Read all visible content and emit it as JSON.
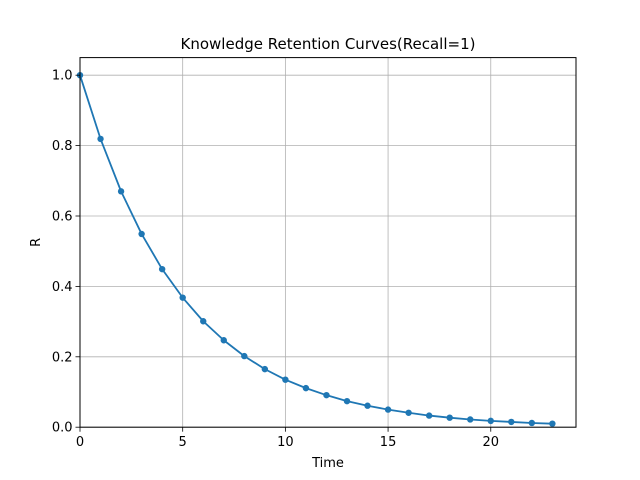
{
  "chart_data": {
    "type": "line",
    "title": "Knowledge Retention Curves(Recall=1)",
    "xlabel": "Time",
    "ylabel": "R",
    "xlim": [
      0,
      24.15
    ],
    "ylim": [
      0,
      1.05
    ],
    "grid": true,
    "x_ticks": [
      0,
      5,
      10,
      15,
      20
    ],
    "y_ticks": [
      0.0,
      0.2,
      0.4,
      0.6,
      0.8,
      1.0
    ],
    "x_tick_labels": [
      "0",
      "5",
      "10",
      "15",
      "20"
    ],
    "y_tick_labels": [
      "0.0",
      "0.2",
      "0.4",
      "0.6",
      "0.8",
      "1.0"
    ],
    "series": [
      {
        "color": "#1f77b4",
        "marker": "circle",
        "x": [
          0,
          1,
          2,
          3,
          4,
          5,
          6,
          7,
          8,
          9,
          10,
          11,
          12,
          13,
          14,
          15,
          16,
          17,
          18,
          19,
          20,
          21,
          22,
          23
        ],
        "y": [
          1.0,
          0.819,
          0.67,
          0.549,
          0.449,
          0.368,
          0.301,
          0.247,
          0.202,
          0.165,
          0.135,
          0.111,
          0.091,
          0.074,
          0.061,
          0.05,
          0.041,
          0.033,
          0.027,
          0.022,
          0.018,
          0.015,
          0.012,
          0.01
        ]
      }
    ]
  }
}
